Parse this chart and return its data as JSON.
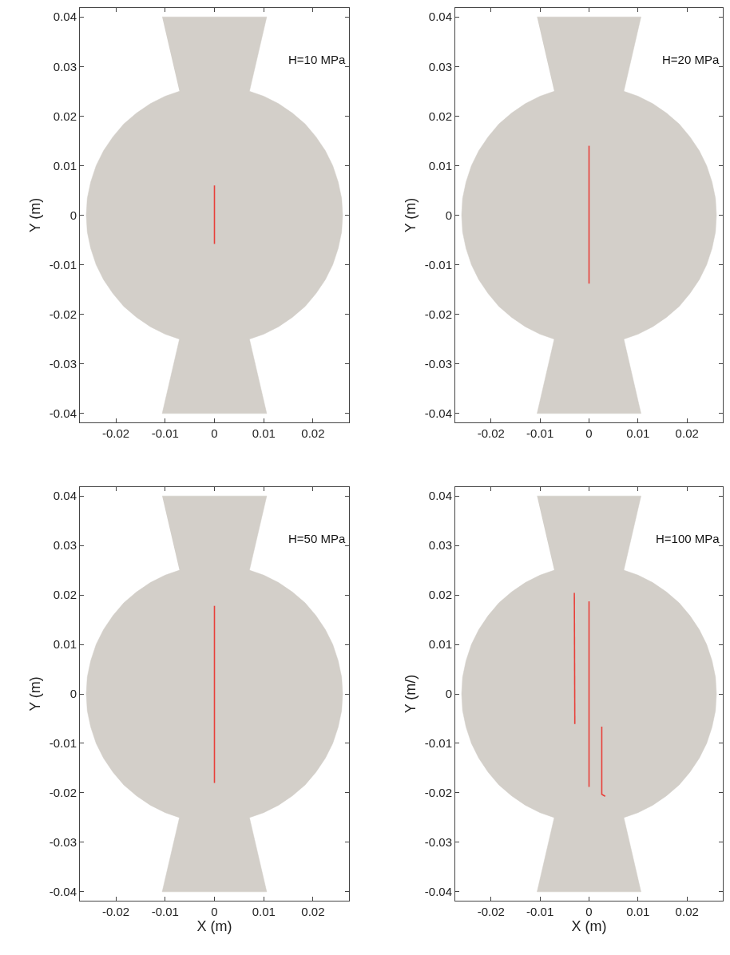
{
  "chart_data": [
    {
      "type": "line",
      "ylabel": "Y (m)",
      "annotations": [
        "H=10 MPa"
      ],
      "xlim": [
        -0.0273,
        0.0273
      ],
      "ylim": [
        -0.0418,
        0.0418
      ],
      "xticks": [
        -0.02,
        -0.01,
        0,
        0.01,
        0.02
      ],
      "yticks": [
        -0.04,
        -0.03,
        -0.02,
        -0.01,
        0,
        0.01,
        0.02,
        0.03,
        0.04
      ],
      "grid": false,
      "series": [
        {
          "type": "area",
          "color": "#d3cfc9",
          "x": [
            -0.0106,
            0.0106,
            0.0071,
            0.01,
            0.013,
            0.0158,
            0.0184,
            0.0206,
            0.0225,
            0.024,
            0.0251,
            0.0258,
            0.026,
            0.0258,
            0.0251,
            0.024,
            0.0225,
            0.0206,
            0.0184,
            0.0158,
            0.013,
            0.01,
            0.0071,
            0.0106,
            -0.0106,
            -0.0071,
            -0.01,
            -0.013,
            -0.0158,
            -0.0184,
            -0.0206,
            -0.0225,
            -0.024,
            -0.0251,
            -0.0258,
            -0.026,
            -0.0258,
            -0.0251,
            -0.024,
            -0.0225,
            -0.0206,
            -0.0184,
            -0.0158,
            -0.013,
            -0.01,
            -0.0071
          ],
          "values": [
            0.04,
            0.04,
            0.025,
            0.024,
            0.0225,
            0.0206,
            0.0184,
            0.0158,
            0.013,
            0.01,
            0.0067,
            0.0034,
            0,
            -0.0034,
            -0.0067,
            -0.01,
            -0.013,
            -0.0158,
            -0.0184,
            -0.0206,
            -0.0225,
            -0.024,
            -0.025,
            -0.04,
            -0.04,
            -0.025,
            -0.024,
            -0.0225,
            -0.0206,
            -0.0184,
            -0.0158,
            -0.013,
            -0.01,
            -0.0067,
            -0.0034,
            0,
            0.0034,
            0.0067,
            0.01,
            0.013,
            0.0158,
            0.0184,
            0.0206,
            0.0225,
            0.024,
            0.025
          ]
        },
        {
          "color": "#e8403a",
          "x": [
            0,
            0
          ],
          "values": [
            0.006,
            -0.0058
          ]
        }
      ]
    },
    {
      "type": "line",
      "ylabel": "Y (m)",
      "annotations": [
        "H=20 MPa"
      ],
      "xlim": [
        -0.0273,
        0.0273
      ],
      "ylim": [
        -0.0418,
        0.0418
      ],
      "xticks": [
        -0.02,
        -0.01,
        0,
        0.01,
        0.02
      ],
      "yticks": [
        -0.04,
        -0.03,
        -0.02,
        -0.01,
        0,
        0.01,
        0.02,
        0.03,
        0.04
      ],
      "grid": false,
      "series": [
        {
          "type": "area",
          "color": "#d3cfc9",
          "x": [
            -0.0106,
            0.0106,
            0.0071,
            0.01,
            0.013,
            0.0158,
            0.0184,
            0.0206,
            0.0225,
            0.024,
            0.0251,
            0.0258,
            0.026,
            0.0258,
            0.0251,
            0.024,
            0.0225,
            0.0206,
            0.0184,
            0.0158,
            0.013,
            0.01,
            0.0071,
            0.0106,
            -0.0106,
            -0.0071,
            -0.01,
            -0.013,
            -0.0158,
            -0.0184,
            -0.0206,
            -0.0225,
            -0.024,
            -0.0251,
            -0.0258,
            -0.026,
            -0.0258,
            -0.0251,
            -0.024,
            -0.0225,
            -0.0206,
            -0.0184,
            -0.0158,
            -0.013,
            -0.01,
            -0.0071
          ],
          "values": [
            0.04,
            0.04,
            0.025,
            0.024,
            0.0225,
            0.0206,
            0.0184,
            0.0158,
            0.013,
            0.01,
            0.0067,
            0.0034,
            0,
            -0.0034,
            -0.0067,
            -0.01,
            -0.013,
            -0.0158,
            -0.0184,
            -0.0206,
            -0.0225,
            -0.024,
            -0.025,
            -0.04,
            -0.04,
            -0.025,
            -0.024,
            -0.0225,
            -0.0206,
            -0.0184,
            -0.0158,
            -0.013,
            -0.01,
            -0.0067,
            -0.0034,
            0,
            0.0034,
            0.0067,
            0.01,
            0.013,
            0.0158,
            0.0184,
            0.0206,
            0.0225,
            0.024,
            0.025
          ]
        },
        {
          "color": "#e8403a",
          "x": [
            0,
            0
          ],
          "values": [
            0.014,
            -0.0138
          ]
        }
      ]
    },
    {
      "type": "line",
      "xlabel": "X (m)",
      "ylabel": "Y (m)",
      "annotations": [
        "H=50 MPa"
      ],
      "xlim": [
        -0.0273,
        0.0273
      ],
      "ylim": [
        -0.0418,
        0.0418
      ],
      "xticks": [
        -0.02,
        -0.01,
        0,
        0.01,
        0.02
      ],
      "yticks": [
        -0.04,
        -0.03,
        -0.02,
        -0.01,
        0,
        0.01,
        0.02,
        0.03,
        0.04
      ],
      "grid": false,
      "series": [
        {
          "type": "area",
          "color": "#d3cfc9",
          "x": [
            -0.0106,
            0.0106,
            0.0071,
            0.01,
            0.013,
            0.0158,
            0.0184,
            0.0206,
            0.0225,
            0.024,
            0.0251,
            0.0258,
            0.026,
            0.0258,
            0.0251,
            0.024,
            0.0225,
            0.0206,
            0.0184,
            0.0158,
            0.013,
            0.01,
            0.0071,
            0.0106,
            -0.0106,
            -0.0071,
            -0.01,
            -0.013,
            -0.0158,
            -0.0184,
            -0.0206,
            -0.0225,
            -0.024,
            -0.0251,
            -0.0258,
            -0.026,
            -0.0258,
            -0.0251,
            -0.024,
            -0.0225,
            -0.0206,
            -0.0184,
            -0.0158,
            -0.013,
            -0.01,
            -0.0071
          ],
          "values": [
            0.04,
            0.04,
            0.025,
            0.024,
            0.0225,
            0.0206,
            0.0184,
            0.0158,
            0.013,
            0.01,
            0.0067,
            0.0034,
            0,
            -0.0034,
            -0.0067,
            -0.01,
            -0.013,
            -0.0158,
            -0.0184,
            -0.0206,
            -0.0225,
            -0.024,
            -0.025,
            -0.04,
            -0.04,
            -0.025,
            -0.024,
            -0.0225,
            -0.0206,
            -0.0184,
            -0.0158,
            -0.013,
            -0.01,
            -0.0067,
            -0.0034,
            0,
            0.0034,
            0.0067,
            0.01,
            0.013,
            0.0158,
            0.0184,
            0.0206,
            0.0225,
            0.024,
            0.025
          ]
        },
        {
          "color": "#e8403a",
          "x": [
            0,
            0
          ],
          "values": [
            0.0178,
            -0.018
          ]
        }
      ]
    },
    {
      "type": "line",
      "xlabel": "X (m)",
      "ylabel": "Y (m/)",
      "annotations": [
        "H=100 MPa"
      ],
      "xlim": [
        -0.0273,
        0.0273
      ],
      "ylim": [
        -0.0418,
        0.0418
      ],
      "xticks": [
        -0.02,
        -0.01,
        0,
        0.01,
        0.02
      ],
      "yticks": [
        -0.04,
        -0.03,
        -0.02,
        -0.01,
        0,
        0.01,
        0.02,
        0.03,
        0.04
      ],
      "grid": false,
      "series": [
        {
          "type": "area",
          "color": "#d3cfc9",
          "x": [
            -0.0106,
            0.0106,
            0.0071,
            0.01,
            0.013,
            0.0158,
            0.0184,
            0.0206,
            0.0225,
            0.024,
            0.0251,
            0.0258,
            0.026,
            0.0258,
            0.0251,
            0.024,
            0.0225,
            0.0206,
            0.0184,
            0.0158,
            0.013,
            0.01,
            0.0071,
            0.0106,
            -0.0106,
            -0.0071,
            -0.01,
            -0.013,
            -0.0158,
            -0.0184,
            -0.0206,
            -0.0225,
            -0.024,
            -0.0251,
            -0.0258,
            -0.026,
            -0.0258,
            -0.0251,
            -0.024,
            -0.0225,
            -0.0206,
            -0.0184,
            -0.0158,
            -0.013,
            -0.01,
            -0.0071
          ],
          "values": [
            0.04,
            0.04,
            0.025,
            0.024,
            0.0225,
            0.0206,
            0.0184,
            0.0158,
            0.013,
            0.01,
            0.0067,
            0.0034,
            0,
            -0.0034,
            -0.0067,
            -0.01,
            -0.013,
            -0.0158,
            -0.0184,
            -0.0206,
            -0.0225,
            -0.024,
            -0.025,
            -0.04,
            -0.04,
            -0.025,
            -0.024,
            -0.0225,
            -0.0206,
            -0.0184,
            -0.0158,
            -0.013,
            -0.01,
            -0.0067,
            -0.0034,
            0,
            0.0034,
            0.0067,
            0.01,
            0.013,
            0.0158,
            0.0184,
            0.0206,
            0.0225,
            0.024,
            0.025
          ]
        },
        {
          "color": "#e8403a",
          "x": [
            -0.003,
            -0.0029
          ],
          "values": [
            0.0204,
            -0.0061
          ]
        },
        {
          "color": "#e8403a",
          "x": [
            0,
            0
          ],
          "values": [
            0.0187,
            -0.0188
          ]
        },
        {
          "color": "#e8403a",
          "x": [
            0.0026,
            0.0026,
            0.0033
          ],
          "values": [
            -0.0066,
            -0.0203,
            -0.0207
          ]
        }
      ]
    }
  ]
}
